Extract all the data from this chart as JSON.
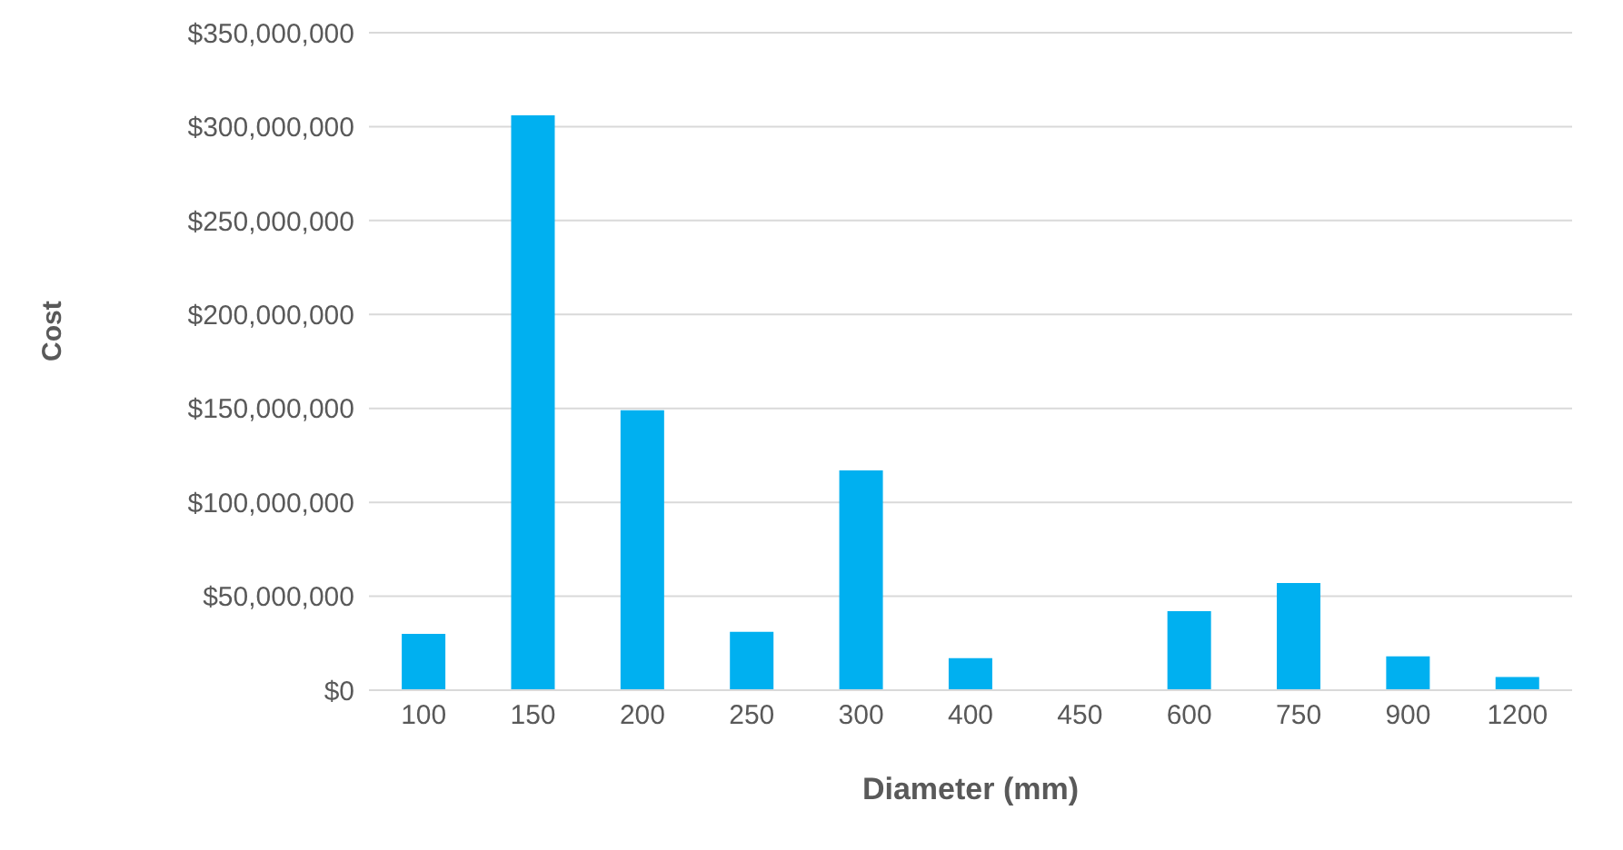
{
  "chart_data": {
    "type": "bar",
    "xlabel": "Diameter (mm)",
    "ylabel": "Cost",
    "categories": [
      "100",
      "150",
      "200",
      "250",
      "300",
      "400",
      "450",
      "600",
      "750",
      "900",
      "1200"
    ],
    "values": [
      30000000,
      306000000,
      149000000,
      31000000,
      117000000,
      17000000,
      0,
      42000000,
      57000000,
      18000000,
      7000000
    ],
    "color": "#00b0f0",
    "ylim": [
      0,
      350000000
    ],
    "yticks": [
      {
        "value": 0,
        "label": "$0"
      },
      {
        "value": 50000000,
        "label": "$50,000,000"
      },
      {
        "value": 100000000,
        "label": "$100,000,000"
      },
      {
        "value": 150000000,
        "label": "$150,000,000"
      },
      {
        "value": 200000000,
        "label": "$200,000,000"
      },
      {
        "value": 250000000,
        "label": "$250,000,000"
      },
      {
        "value": 300000000,
        "label": "$300,000,000"
      },
      {
        "value": 350000000,
        "label": "$350,000,000"
      }
    ],
    "grid": "y",
    "legend": false
  }
}
